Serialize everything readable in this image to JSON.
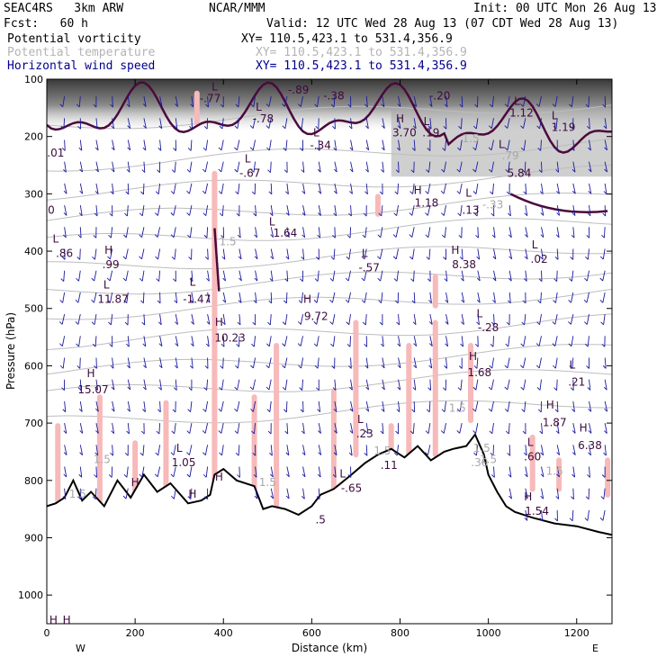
{
  "header": {
    "project": "SEAC4RS   3km ARW",
    "org": "NCAR/MMM",
    "init": "Init: 00 UTC Mon 26 Aug 13",
    "fcst": "Fcst:   60 h",
    "valid": "Valid: 12 UTC Wed 28 Aug 13 (07 CDT Wed 28 Aug 13)",
    "fields": [
      {
        "name": "Potential vorticity",
        "xy": "XY= 110.5,423.1 to 531.4,356.9",
        "color": "#000000"
      },
      {
        "name": "Potential temperature",
        "xy": "XY= 110.5,423.1 to 531.4,356.9",
        "color": "#b4b4b4"
      },
      {
        "name": "Horizontal wind speed",
        "xy": "XY= 110.5,423.1 to 531.4,356.9",
        "color": "#00008b"
      }
    ]
  },
  "colors": {
    "pv_contour": "#4b0a3c",
    "theta_contour": "#bdbdbd",
    "wind_arrows": "#1a1aa0",
    "pv_fill": "#f7b9b9",
    "terrain_line": "#000000",
    "label_purple": "#3c0a3c",
    "label_gray": "#a8a8a8"
  },
  "chart_data": {
    "type": "cross-section",
    "xlabel": "Distance (km)",
    "ylabel": "Pressure (hPa)",
    "xlim": [
      0,
      1280
    ],
    "ylim": [
      1050,
      100
    ],
    "x_ticks": [
      "0",
      "200",
      "400",
      "600",
      "800",
      "1000",
      "1200"
    ],
    "x_tick_values": [
      0,
      200,
      400,
      600,
      800,
      1000,
      1200
    ],
    "y_ticks": [
      "100",
      "200",
      "300",
      "400",
      "500",
      "600",
      "700",
      "800",
      "900",
      "1000"
    ],
    "y_tick_values": [
      100,
      200,
      300,
      400,
      500,
      600,
      700,
      800,
      900,
      1000
    ],
    "end_labels": {
      "left": "W",
      "right": "E"
    },
    "terrain": {
      "x": [
        0,
        20,
        40,
        60,
        80,
        100,
        130,
        160,
        190,
        220,
        250,
        280,
        320,
        350,
        370,
        380,
        400,
        430,
        470,
        490,
        510,
        540,
        570,
        600,
        620,
        650,
        690,
        720,
        750,
        780,
        810,
        840,
        870,
        900,
        920,
        950,
        970,
        990,
        1000,
        1020,
        1040,
        1060,
        1100,
        1150,
        1200,
        1250,
        1280
      ],
      "p": [
        845,
        840,
        830,
        800,
        835,
        820,
        845,
        800,
        830,
        790,
        820,
        805,
        840,
        835,
        825,
        790,
        780,
        800,
        810,
        850,
        845,
        850,
        860,
        845,
        825,
        815,
        790,
        770,
        755,
        745,
        760,
        740,
        765,
        750,
        745,
        740,
        720,
        755,
        790,
        820,
        845,
        855,
        865,
        875,
        880,
        890,
        895
      ]
    },
    "theta_levels_hPa": [
      180,
      250,
      300,
      345,
      385,
      430,
      470,
      510,
      560,
      610,
      650,
      700
    ],
    "annotations": [
      {
        "t": "H",
        "x": 15,
        "p": 1050
      },
      {
        "t": "L",
        "x": 20,
        "p": 385
      },
      {
        "t": "H",
        "x": 45,
        "p": 1050
      },
      {
        "t": ".86",
        "x": 40,
        "p": 410
      },
      {
        "t": "H",
        "x": 140,
        "p": 405
      },
      {
        "t": ".99",
        "x": 145,
        "p": 430
      },
      {
        "t": "L",
        "x": 135,
        "p": 465
      },
      {
        "t": "11.87",
        "x": 150,
        "p": 490
      },
      {
        "t": "H",
        "x": 100,
        "p": 620
      },
      {
        "t": "15.07",
        "x": 105,
        "p": 648
      },
      {
        "t": ".01",
        "x": 20,
        "p": 235
      },
      {
        "t": "0",
        "x": 10,
        "p": 335
      },
      {
        "t": "L",
        "x": 330,
        "p": 460
      },
      {
        "t": "-1.47",
        "x": 340,
        "p": 490
      },
      {
        "t": "H",
        "x": 390,
        "p": 530
      },
      {
        "t": "10.23",
        "x": 415,
        "p": 558
      },
      {
        "t": "H",
        "x": 590,
        "p": 490
      },
      {
        "t": "9.72",
        "x": 610,
        "p": 520
      },
      {
        "t": "1.5",
        "x": 410,
        "p": 390
      },
      {
        "t": "L",
        "x": 510,
        "p": 355
      },
      {
        "t": "1.64",
        "x": 540,
        "p": 375
      },
      {
        "t": "L",
        "x": 455,
        "p": 245
      },
      {
        "t": "-.67",
        "x": 460,
        "p": 270
      },
      {
        "t": "L",
        "x": 610,
        "p": 200
      },
      {
        "t": "-.34",
        "x": 620,
        "p": 222
      },
      {
        "t": "L",
        "x": 480,
        "p": 155
      },
      {
        "t": "-.78",
        "x": 490,
        "p": 175
      },
      {
        "t": "L",
        "x": 380,
        "p": 120
      },
      {
        "t": "-.77",
        "x": 370,
        "p": 140
      },
      {
        "t": "-.89",
        "x": 570,
        "p": 125
      },
      {
        "t": "-.38",
        "x": 650,
        "p": 135
      },
      {
        "t": "-.20",
        "x": 890,
        "p": 135
      },
      {
        "t": "H",
        "x": 800,
        "p": 175
      },
      {
        "t": "3.70",
        "x": 810,
        "p": 200
      },
      {
        "t": "L",
        "x": 860,
        "p": 180
      },
      {
        "t": ".19",
        "x": 870,
        "p": 200
      },
      {
        "t": "1.5",
        "x": 960,
        "p": 210
      },
      {
        "t": "L",
        "x": 1065,
        "p": 145
      },
      {
        "t": "1.12",
        "x": 1075,
        "p": 165
      },
      {
        "t": "L",
        "x": 1150,
        "p": 170
      },
      {
        "t": "1.19",
        "x": 1170,
        "p": 190
      },
      {
        "t": "L",
        "x": 1030,
        "p": 220
      },
      {
        "t": ".79",
        "x": 1050,
        "p": 240
      },
      {
        "t": "5.84",
        "x": 1070,
        "p": 270
      },
      {
        "t": "H",
        "x": 840,
        "p": 300
      },
      {
        "t": "1.18",
        "x": 860,
        "p": 322
      },
      {
        "t": "L",
        "x": 955,
        "p": 305
      },
      {
        "t": ".13",
        "x": 960,
        "p": 335
      },
      {
        "t": "-.33",
        "x": 1010,
        "p": 325
      },
      {
        "t": "L",
        "x": 720,
        "p": 410
      },
      {
        "t": "-.57",
        "x": 730,
        "p": 435
      },
      {
        "t": "H",
        "x": 925,
        "p": 405
      },
      {
        "t": "8.38",
        "x": 945,
        "p": 430
      },
      {
        "t": "L",
        "x": 1105,
        "p": 395
      },
      {
        "t": ".02",
        "x": 1115,
        "p": 420
      },
      {
        "t": "L",
        "x": 980,
        "p": 515
      },
      {
        "t": "-.28",
        "x": 1000,
        "p": 540
      },
      {
        "t": "H",
        "x": 965,
        "p": 590
      },
      {
        "t": "1.68",
        "x": 980,
        "p": 618
      },
      {
        "t": "L",
        "x": 1190,
        "p": 605
      },
      {
        "t": ".21",
        "x": 1200,
        "p": 635
      },
      {
        "t": "H",
        "x": 1140,
        "p": 675
      },
      {
        "t": "1.87",
        "x": 1150,
        "p": 705
      },
      {
        "t": "H",
        "x": 1215,
        "p": 715
      },
      {
        "t": "6.38",
        "x": 1230,
        "p": 745
      },
      {
        "t": "1.5",
        "x": 930,
        "p": 680
      },
      {
        "t": "L",
        "x": 710,
        "p": 700
      },
      {
        "t": ".23",
        "x": 720,
        "p": 725
      },
      {
        "t": "1.5",
        "x": 760,
        "p": 755
      },
      {
        "t": ".11",
        "x": 775,
        "p": 780
      },
      {
        "t": "1.5",
        "x": 985,
        "p": 750
      },
      {
        "t": ".30",
        "x": 980,
        "p": 775
      },
      {
        "t": "1.5",
        "x": 1000,
        "p": 770
      },
      {
        "t": "L",
        "x": 1095,
        "p": 740
      },
      {
        "t": ".60",
        "x": 1100,
        "p": 765
      },
      {
        "t": "1.5",
        "x": 1150,
        "p": 790
      },
      {
        "t": "1.54",
        "x": 1110,
        "p": 860
      },
      {
        "t": "H",
        "x": 1090,
        "p": 835
      },
      {
        "t": "L",
        "x": 300,
        "p": 750
      },
      {
        "t": "1.05",
        "x": 310,
        "p": 775
      },
      {
        "t": "1.5",
        "x": 125,
        "p": 770
      },
      {
        "t": "1.5",
        "x": 70,
        "p": 830
      },
      {
        "t": "1.5",
        "x": 500,
        "p": 810
      },
      {
        "t": "L",
        "x": 670,
        "p": 795
      },
      {
        "t": "-.65",
        "x": 690,
        "p": 820
      },
      {
        "t": ".5",
        "x": 620,
        "p": 875
      },
      {
        "t": "H",
        "x": 390,
        "p": 800
      },
      {
        "t": "H",
        "x": 330,
        "p": 830
      },
      {
        "t": "H",
        "x": 200,
        "p": 810
      }
    ]
  }
}
